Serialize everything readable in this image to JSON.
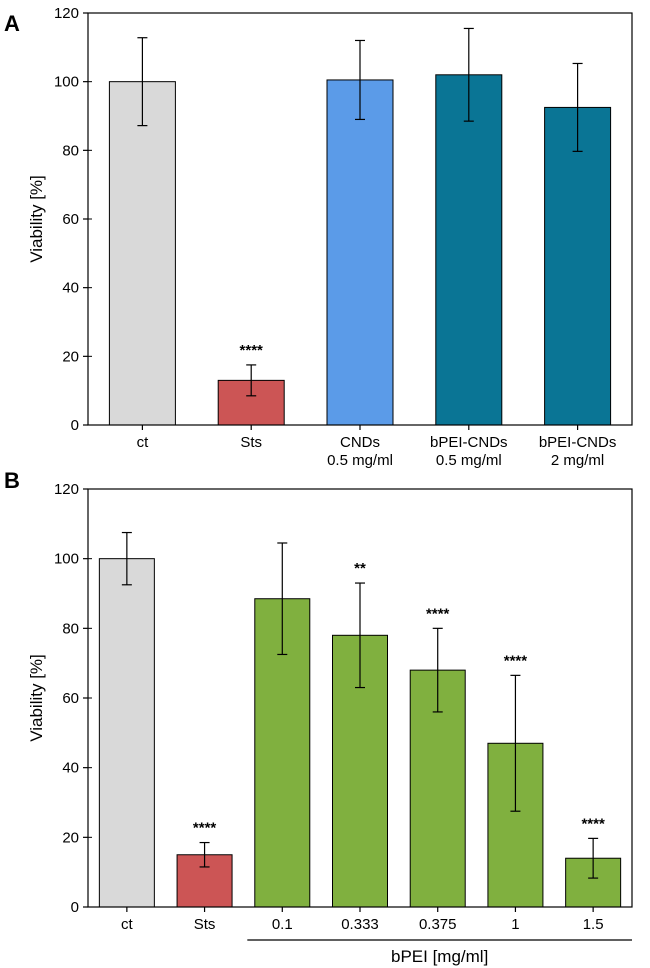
{
  "chart_data": [
    {
      "panel": "A",
      "type": "bar",
      "ylabel": "Viability [%]",
      "ylim": [
        0,
        120
      ],
      "yticks": [
        "0",
        "20",
        "40",
        "60",
        "80",
        "100",
        "120"
      ],
      "categories": [
        [
          "ct"
        ],
        [
          "Sts"
        ],
        [
          "CNDs",
          "0.5 mg/ml"
        ],
        [
          "bPEI-CNDs",
          "0.5 mg/ml"
        ],
        [
          "bPEI-CNDs",
          "2 mg/ml"
        ]
      ],
      "values": [
        100,
        13,
        100.5,
        102,
        92.5
      ],
      "errors": [
        12.8,
        4.5,
        11.5,
        13.5,
        12.8
      ],
      "significance": [
        "",
        "****",
        "",
        "",
        ""
      ],
      "colors": [
        "#d9d9d9",
        "#cc5555",
        "#5b9be8",
        "#0a7595",
        "#0a7595"
      ],
      "group_label": ""
    },
    {
      "panel": "B",
      "type": "bar",
      "ylabel": "Viability [%]",
      "ylim": [
        0,
        120
      ],
      "yticks": [
        "0",
        "20",
        "40",
        "60",
        "80",
        "100",
        "120"
      ],
      "categories": [
        [
          "ct"
        ],
        [
          "Sts"
        ],
        [
          "0.1"
        ],
        [
          "0.333"
        ],
        [
          "0.375"
        ],
        [
          "1"
        ],
        [
          "1.5"
        ]
      ],
      "values": [
        100,
        15,
        88.5,
        78,
        68,
        47,
        14
      ],
      "errors": [
        7.5,
        3.5,
        16,
        15,
        12,
        19.5,
        5.7
      ],
      "significance": [
        "",
        "****",
        "",
        "**",
        "****",
        "****",
        "****"
      ],
      "colors": [
        "#d9d9d9",
        "#cc5555",
        "#80b03f",
        "#80b03f",
        "#80b03f",
        "#80b03f",
        "#80b03f"
      ],
      "group_label": "bPEI [mg/ml]"
    }
  ]
}
